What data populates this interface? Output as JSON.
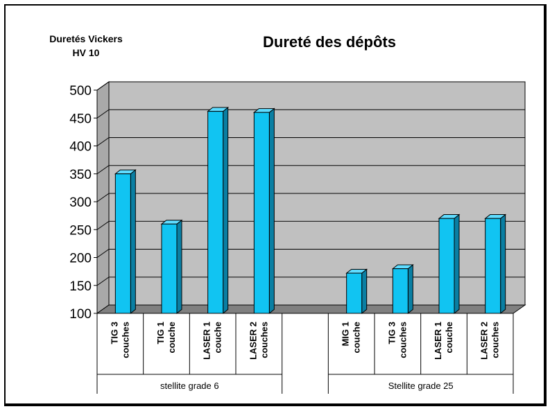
{
  "chart_data": {
    "type": "bar",
    "title": "Dureté des dépôts",
    "ylabel_lines": [
      "Duretés Vickers",
      "HV 10"
    ],
    "ylim": [
      100,
      500
    ],
    "yticks": [
      100,
      150,
      200,
      250,
      300,
      350,
      400,
      450,
      500
    ],
    "grid": true,
    "groups": [
      {
        "name": "stellite grade 6",
        "categories": [
          [
            "TIG 3",
            "couches"
          ],
          [
            "TIG 1",
            "couche"
          ],
          [
            "LASER 1",
            "couche"
          ],
          [
            "LASER 2",
            "couches"
          ]
        ],
        "values": [
          350,
          260,
          462,
          460
        ]
      },
      {
        "name": "Stellite grade 25",
        "categories": [
          [
            "MIG 1",
            "couche"
          ],
          [
            "TIG 3",
            "couches"
          ],
          [
            "LASER 1",
            "couche"
          ],
          [
            "LASER 2",
            "couches"
          ]
        ],
        "values": [
          172,
          180,
          270,
          270
        ]
      }
    ],
    "colors": {
      "bar": "#11c4f2",
      "bar_side": "#0a7fa3",
      "bar_top": "#5fdcff",
      "wall": "#c0c0c0",
      "floor": "#808080"
    }
  }
}
